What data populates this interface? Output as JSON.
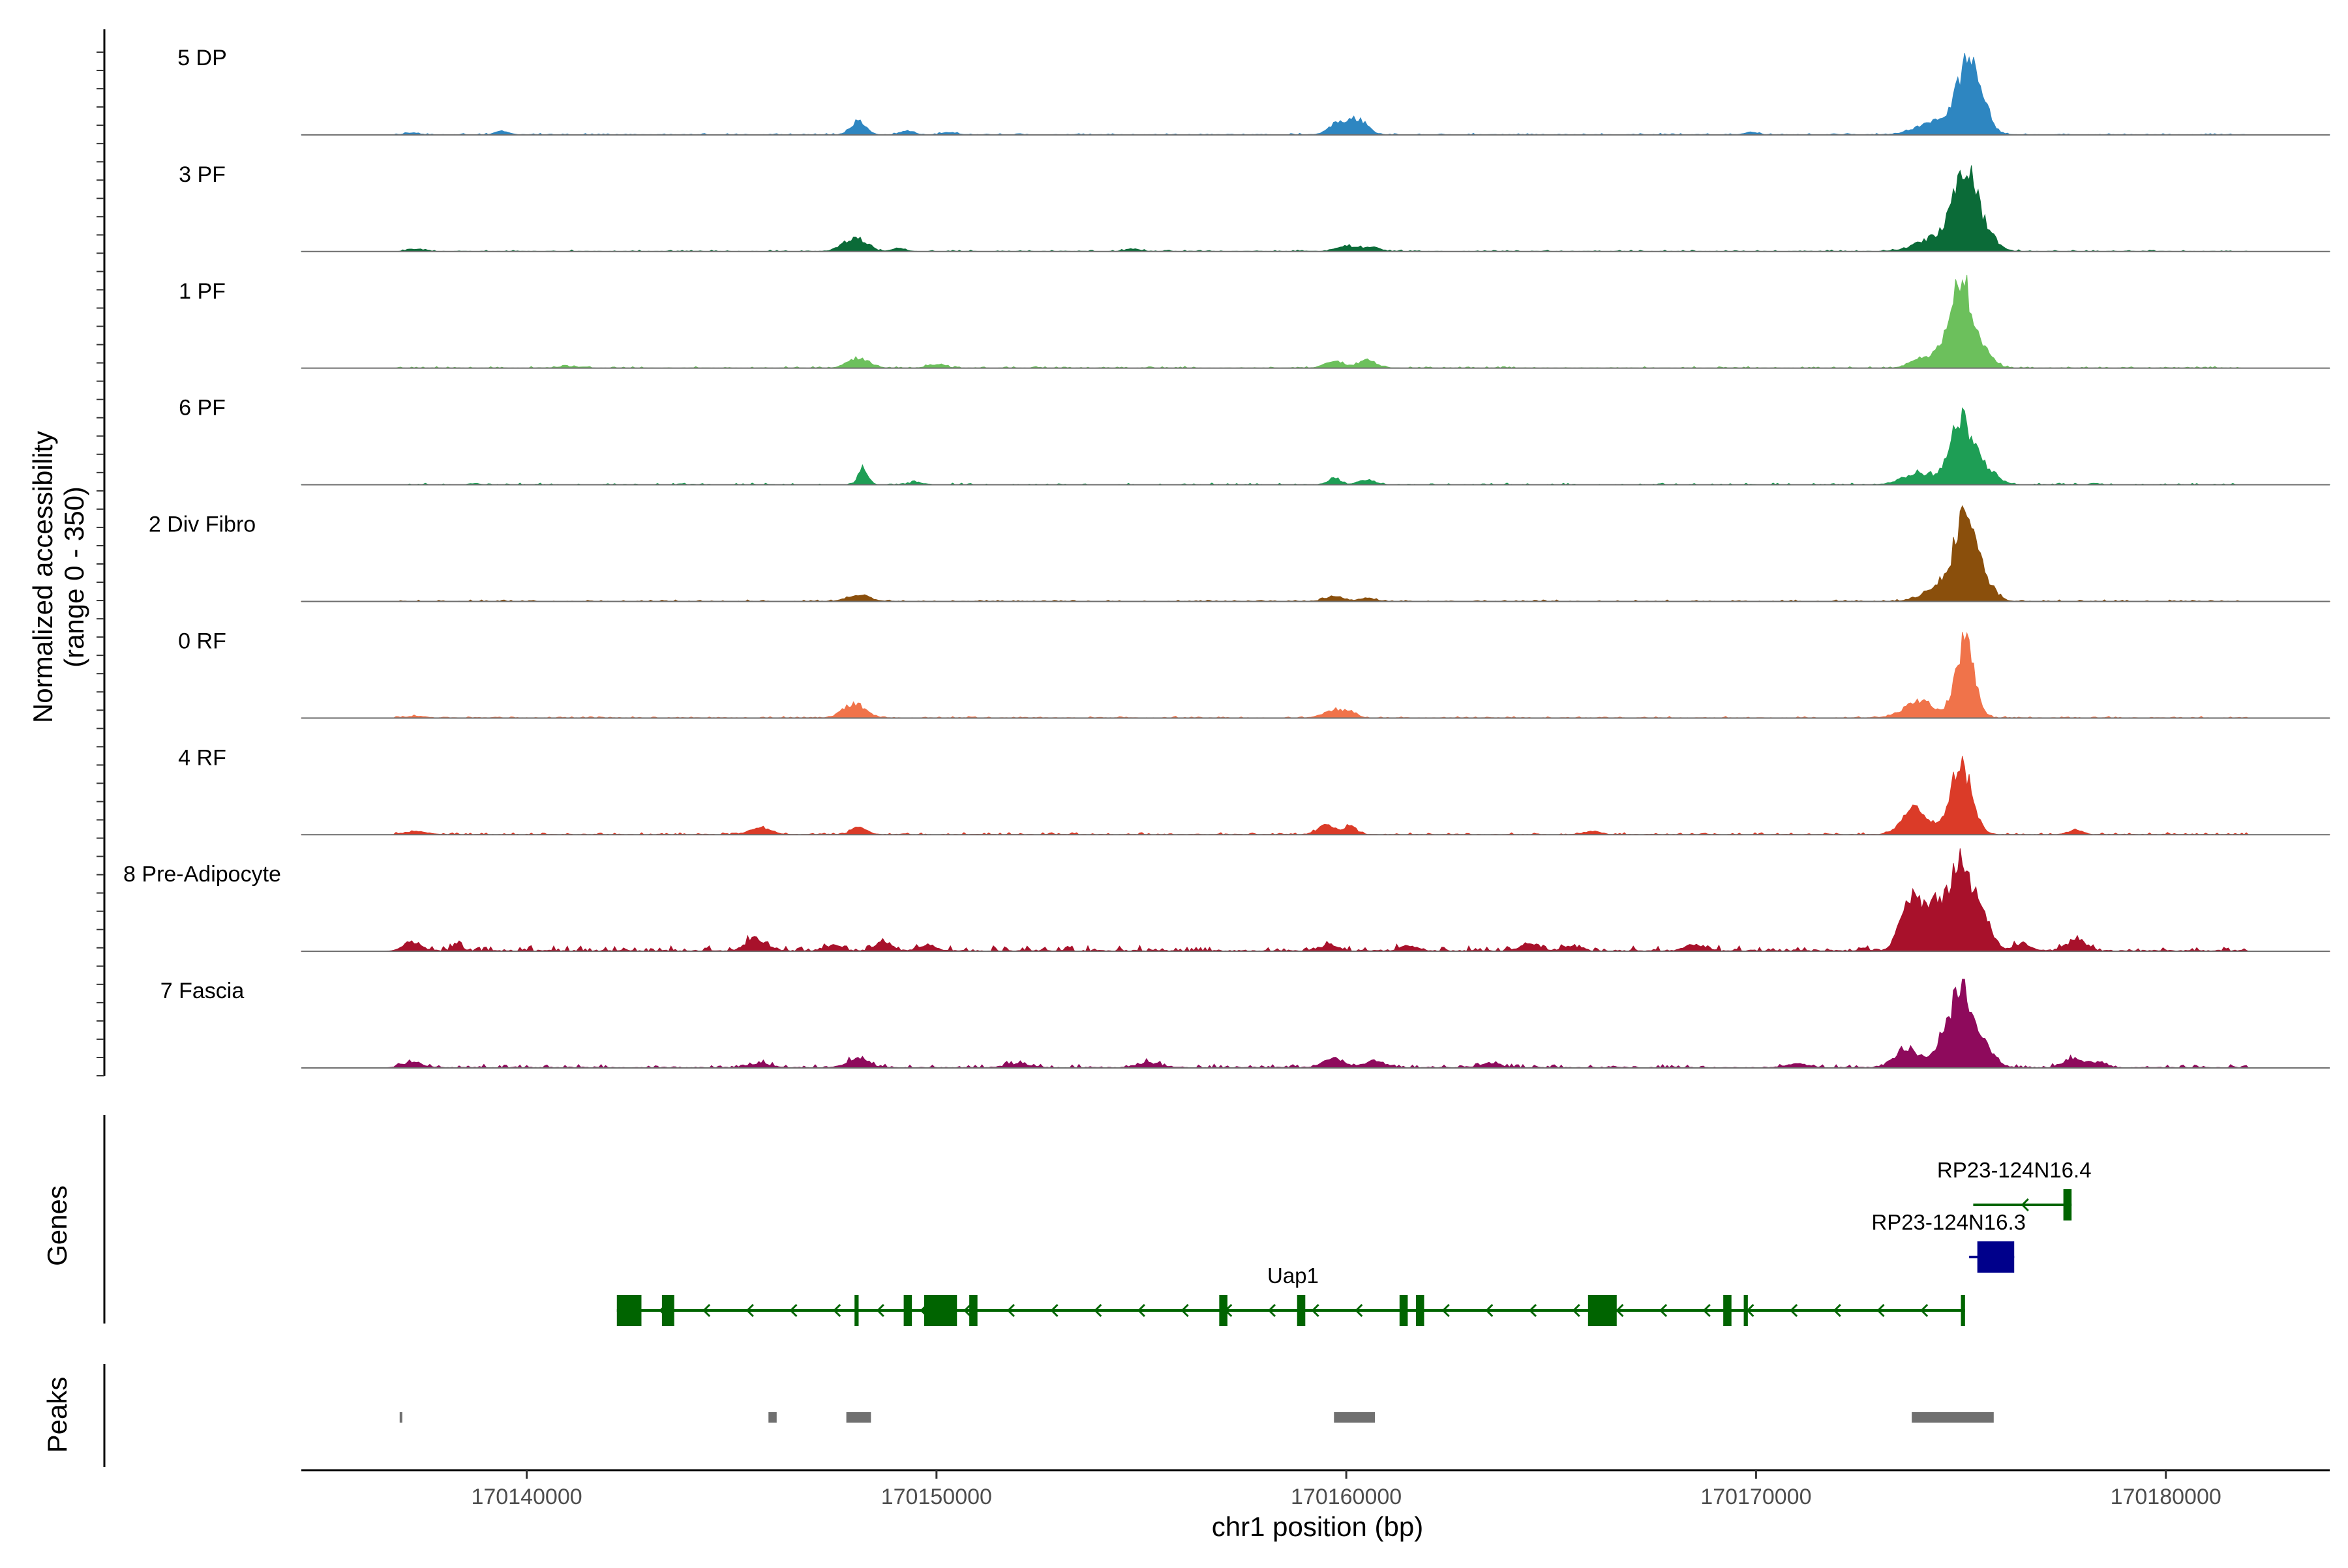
{
  "chart_data": {
    "type": "area",
    "title": "",
    "ylabel_line1": "Normalized accessibility",
    "ylabel_line2": "(range 0 - 350)",
    "y_range": [
      0,
      350
    ],
    "xlabel": "chr1 position (bp)",
    "x_range": [
      170134500,
      170184000
    ],
    "x_ticks": [
      170140000,
      170150000,
      170160000,
      170170000,
      170180000
    ],
    "x_tick_labels": [
      "170140000",
      "170150000",
      "170160000",
      "170170000",
      "170180000"
    ],
    "tracks": [
      {
        "name": "5 DP",
        "color": "#2E86C1",
        "peaks": [
          [
            170137200,
            3,
            160
          ],
          [
            170139400,
            6,
            160
          ],
          [
            170148100,
            20,
            180
          ],
          [
            170149300,
            6,
            160
          ],
          [
            170150300,
            4,
            160
          ],
          [
            170159800,
            18,
            220
          ],
          [
            170160300,
            24,
            220
          ],
          [
            170169900,
            4,
            160
          ],
          [
            170174500,
            22,
            500
          ],
          [
            170175200,
            110,
            260
          ],
          [
            170175500,
            20,
            260
          ]
        ],
        "noise": 2.2
      },
      {
        "name": "3 PF",
        "color": "#0B6B38",
        "peaks": [
          [
            170137300,
            4,
            180
          ],
          [
            170148000,
            20,
            280
          ],
          [
            170149100,
            5,
            160
          ],
          [
            170154800,
            4,
            160
          ],
          [
            170160000,
            9,
            220
          ],
          [
            170160600,
            7,
            200
          ],
          [
            170174500,
            24,
            500
          ],
          [
            170175100,
            120,
            260
          ],
          [
            170175600,
            26,
            260
          ]
        ],
        "noise": 2.2
      },
      {
        "name": "1 PF",
        "color": "#6CC05C",
        "peaks": [
          [
            170141000,
            2,
            300
          ],
          [
            170148100,
            16,
            260
          ],
          [
            170150000,
            6,
            200
          ],
          [
            170159700,
            10,
            220
          ],
          [
            170160500,
            12,
            220
          ],
          [
            170173900,
            10,
            220
          ],
          [
            170174500,
            22,
            300
          ],
          [
            170175000,
            135,
            240
          ],
          [
            170175500,
            30,
            240
          ]
        ],
        "noise": 2.4
      },
      {
        "name": "6 PF",
        "color": "#1E9E55",
        "peaks": [
          [
            170148200,
            28,
            110
          ],
          [
            170149500,
            4,
            160
          ],
          [
            170159700,
            11,
            140
          ],
          [
            170160500,
            8,
            200
          ],
          [
            170174000,
            18,
            400
          ],
          [
            170175000,
            105,
            260
          ],
          [
            170175600,
            26,
            260
          ]
        ],
        "noise": 2.4
      },
      {
        "name": "2 Div Fibro",
        "color": "#8A4F0C",
        "peaks": [
          [
            170148100,
            10,
            260
          ],
          [
            170159700,
            8,
            220
          ],
          [
            170160500,
            5,
            200
          ],
          [
            170174600,
            26,
            420
          ],
          [
            170175100,
            118,
            250
          ],
          [
            170175600,
            26,
            240
          ]
        ],
        "noise": 2.2
      },
      {
        "name": "0 RF",
        "color": "#F0734A",
        "peaks": [
          [
            170137300,
            3,
            220
          ],
          [
            170148000,
            22,
            260
          ],
          [
            170159700,
            12,
            260
          ],
          [
            170160100,
            8,
            160
          ],
          [
            170174000,
            26,
            380
          ],
          [
            170175100,
            120,
            220
          ]
        ],
        "noise": 2.4
      },
      {
        "name": "4 RF",
        "color": "#DB3B28",
        "peaks": [
          [
            170137300,
            5,
            260
          ],
          [
            170145700,
            10,
            260
          ],
          [
            170148100,
            12,
            180
          ],
          [
            170159500,
            14,
            200
          ],
          [
            170160100,
            12,
            160
          ],
          [
            170166000,
            5,
            200
          ],
          [
            170173900,
            42,
            300
          ],
          [
            170175000,
            105,
            260
          ],
          [
            170177800,
            8,
            160
          ]
        ],
        "noise": 3.0
      },
      {
        "name": "8 Pre-Adipocyte",
        "color": "#A8112B",
        "peaks": [
          [
            170137200,
            14,
            220
          ],
          [
            170138300,
            8,
            120
          ],
          [
            170145600,
            18,
            260
          ],
          [
            170147500,
            10,
            200
          ],
          [
            170148700,
            14,
            200
          ],
          [
            170149800,
            8,
            200
          ],
          [
            170159600,
            10,
            200
          ],
          [
            170161500,
            8,
            200
          ],
          [
            170164500,
            12,
            240
          ],
          [
            170165500,
            8,
            200
          ],
          [
            170168500,
            10,
            240
          ],
          [
            170173800,
            80,
            260
          ],
          [
            170174300,
            60,
            200
          ],
          [
            170175000,
            145,
            300
          ],
          [
            170175600,
            38,
            200
          ],
          [
            170176500,
            12,
            200
          ],
          [
            170177800,
            16,
            240
          ]
        ],
        "noise": 8.0
      },
      {
        "name": "7 Fascia",
        "color": "#8E0A5C",
        "peaks": [
          [
            170137200,
            8,
            260
          ],
          [
            170145700,
            6,
            260
          ],
          [
            170148100,
            14,
            260
          ],
          [
            170152000,
            6,
            300
          ],
          [
            170155200,
            8,
            280
          ],
          [
            170159700,
            14,
            260
          ],
          [
            170160700,
            10,
            260
          ],
          [
            170163500,
            6,
            260
          ],
          [
            170171000,
            6,
            260
          ],
          [
            170173700,
            30,
            300
          ],
          [
            170174500,
            22,
            200
          ],
          [
            170175000,
            120,
            280
          ],
          [
            170175600,
            26,
            240
          ],
          [
            170177700,
            14,
            220
          ],
          [
            170178300,
            8,
            220
          ]
        ],
        "noise": 5.0
      }
    ],
    "genes_label": "Genes",
    "genes": [
      {
        "name": "Uap1",
        "color": "#006400",
        "start": 170142200,
        "end": 170175100,
        "strand": "-",
        "row": 2,
        "exons": [
          [
            170142200,
            170142800
          ],
          [
            170143300,
            170143600
          ],
          [
            170148000,
            170148100
          ],
          [
            170149200,
            170149400
          ],
          [
            170149700,
            170150500
          ],
          [
            170150800,
            170151000
          ],
          [
            170156900,
            170157100
          ],
          [
            170158800,
            170159000
          ],
          [
            170161300,
            170161500
          ],
          [
            170161700,
            170161900
          ],
          [
            170165900,
            170166600
          ],
          [
            170169200,
            170169400
          ],
          [
            170169700,
            170169800
          ],
          [
            170175000,
            170175100
          ]
        ]
      },
      {
        "name": "RP23-124N16.3",
        "color": "#00008B",
        "start": 170175200,
        "end": 170176300,
        "strand": "-",
        "row": 1,
        "exons": [
          [
            170175400,
            170176300
          ]
        ]
      },
      {
        "name": "RP23-124N16.4",
        "color": "#006400",
        "start": 170175300,
        "end": 170177700,
        "strand": "-",
        "row": 0,
        "exons": [
          [
            170177500,
            170177700
          ]
        ]
      }
    ],
    "peaks_label": "Peaks",
    "peak_color": "#707070",
    "peak_regions": [
      [
        170136900,
        170136960
      ],
      [
        170145900,
        170146100
      ],
      [
        170147800,
        170148400
      ],
      [
        170159700,
        170160700
      ],
      [
        170173800,
        170175800
      ]
    ]
  }
}
